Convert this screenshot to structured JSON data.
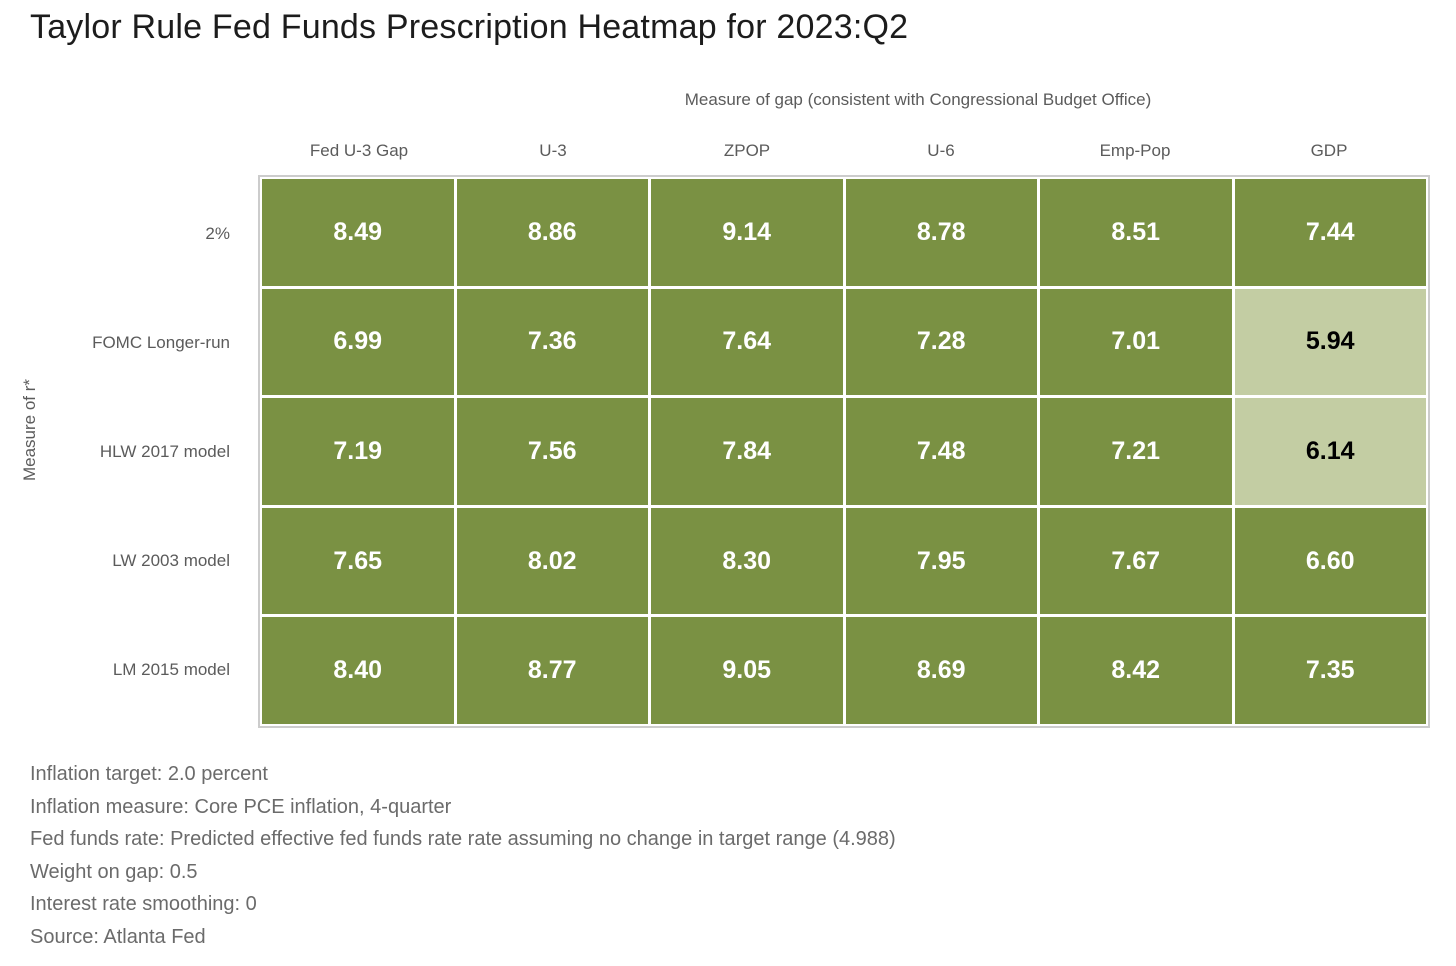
{
  "chart_data": {
    "type": "heatmap",
    "title": "Taylor Rule Fed Funds Prescription Heatmap for 2023:Q2",
    "x_axis_title": "Measure of gap (consistent with Congressional Budget Office)",
    "y_axis_title": "Measure of r*",
    "columns": [
      "Fed U-3 Gap",
      "U-3",
      "ZPOP",
      "U-6",
      "Emp-Pop",
      "GDP"
    ],
    "rows": [
      "2%",
      "FOMC Longer-run",
      "HLW 2017 model",
      "LW 2003 model",
      "LM 2015 model"
    ],
    "values": [
      [
        "8.49",
        "8.86",
        "9.14",
        "8.78",
        "8.51",
        "7.44"
      ],
      [
        "6.99",
        "7.36",
        "7.64",
        "7.28",
        "7.01",
        "5.94"
      ],
      [
        "7.19",
        "7.56",
        "7.84",
        "7.48",
        "7.21",
        "6.14"
      ],
      [
        "7.65",
        "8.02",
        "8.30",
        "7.95",
        "7.67",
        "6.60"
      ],
      [
        "8.40",
        "8.77",
        "9.05",
        "8.69",
        "8.42",
        "7.35"
      ]
    ],
    "light_cells": [
      [
        1,
        5
      ],
      [
        2,
        5
      ]
    ],
    "colors": {
      "cell_dark": "#7a9143",
      "cell_light": "#c3cda3",
      "value_on_dark": "#ffffff",
      "value_on_light": "#000000",
      "grid_border": "#cccccc",
      "axis_label": "#5b5b5b",
      "title": "#1c1c1c",
      "note_text": "#6b6b6b"
    },
    "legend": "none",
    "grid_lines": "white separators between cells",
    "notes": [
      "Inflation target: 2.0 percent",
      "Inflation measure: Core PCE inflation, 4-quarter",
      "Fed funds rate: Predicted effective fed funds rate rate assuming no change in target range (4.988)",
      "Weight on gap: 0.5",
      "Interest rate smoothing: 0",
      "Source: Atlanta Fed"
    ]
  }
}
